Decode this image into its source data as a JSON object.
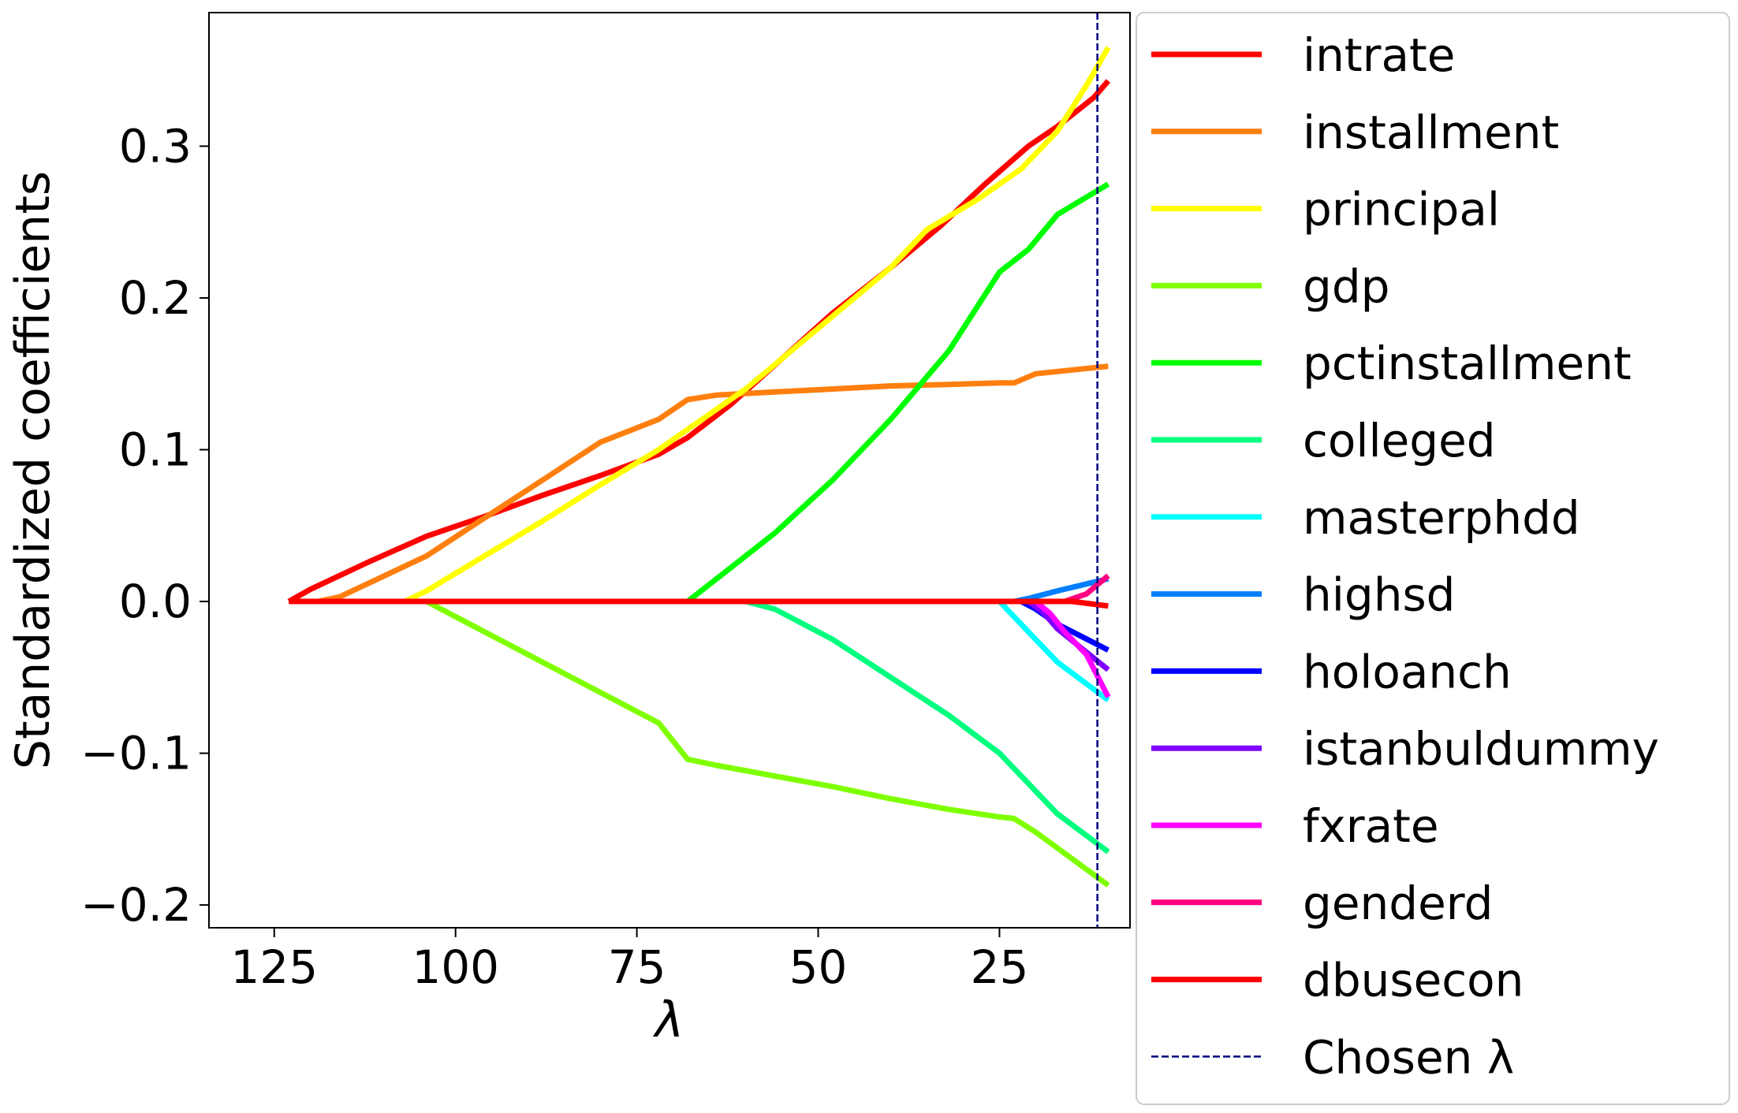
{
  "chart_data": {
    "type": "line",
    "title": "",
    "xlabel": "λ",
    "ylabel": "Standardized coefficients",
    "xlim": [
      134,
      7
    ],
    "ylim": [
      -0.215,
      0.388
    ],
    "x_ticks": [
      125,
      100,
      75,
      50,
      25
    ],
    "x_tick_labels": [
      "125",
      "100",
      "75",
      "50",
      "25"
    ],
    "y_ticks": [
      -0.2,
      -0.1,
      0.0,
      0.1,
      0.2,
      0.3
    ],
    "y_tick_labels": [
      "−0.2",
      "−0.1",
      "0.0",
      "0.1",
      "0.2",
      "0.3"
    ],
    "grid": false,
    "legend_position": "outside-right",
    "chosen_lambda": {
      "label": "Chosen λ",
      "x": 11.5,
      "color": "#000080"
    },
    "series": [
      {
        "name": "intrate",
        "color": "#ff0000",
        "points": [
          [
            123,
            0
          ],
          [
            120,
            0.008
          ],
          [
            112,
            0.026
          ],
          [
            104,
            0.043
          ],
          [
            96,
            0.056
          ],
          [
            88,
            0.07
          ],
          [
            80,
            0.083
          ],
          [
            72,
            0.097
          ],
          [
            68,
            0.108
          ],
          [
            62,
            0.13
          ],
          [
            55,
            0.16
          ],
          [
            48,
            0.19
          ],
          [
            40,
            0.22
          ],
          [
            33,
            0.248
          ],
          [
            27,
            0.275
          ],
          [
            21,
            0.3
          ],
          [
            17,
            0.313
          ],
          [
            12,
            0.332
          ],
          [
            10,
            0.343
          ]
        ]
      },
      {
        "name": "installment",
        "color": "#ff7f0e",
        "points": [
          [
            119,
            0
          ],
          [
            116,
            0.003
          ],
          [
            104,
            0.03
          ],
          [
            96,
            0.055
          ],
          [
            88,
            0.08
          ],
          [
            80,
            0.105
          ],
          [
            72,
            0.12
          ],
          [
            68,
            0.133
          ],
          [
            64,
            0.136
          ],
          [
            56,
            0.138
          ],
          [
            48,
            0.14
          ],
          [
            40,
            0.142
          ],
          [
            32,
            0.143
          ],
          [
            25,
            0.144
          ],
          [
            23,
            0.144
          ],
          [
            20,
            0.15
          ],
          [
            10,
            0.155
          ]
        ]
      },
      {
        "name": "principal",
        "color": "#ffff00",
        "points": [
          [
            107,
            0
          ],
          [
            104,
            0.007
          ],
          [
            96,
            0.03
          ],
          [
            88,
            0.053
          ],
          [
            80,
            0.077
          ],
          [
            72,
            0.1
          ],
          [
            66,
            0.12
          ],
          [
            60,
            0.14
          ],
          [
            55,
            0.16
          ],
          [
            50,
            0.18
          ],
          [
            45,
            0.2
          ],
          [
            40,
            0.22
          ],
          [
            35,
            0.245
          ],
          [
            28,
            0.265
          ],
          [
            22,
            0.285
          ],
          [
            17,
            0.31
          ],
          [
            13,
            0.34
          ],
          [
            10,
            0.365
          ]
        ]
      },
      {
        "name": "gdp",
        "color": "#7fff00",
        "points": [
          [
            104,
            0
          ],
          [
            96,
            -0.02
          ],
          [
            88,
            -0.04
          ],
          [
            80,
            -0.06
          ],
          [
            72,
            -0.08
          ],
          [
            68,
            -0.104
          ],
          [
            64,
            -0.108
          ],
          [
            56,
            -0.115
          ],
          [
            48,
            -0.122
          ],
          [
            40,
            -0.13
          ],
          [
            32,
            -0.137
          ],
          [
            25,
            -0.142
          ],
          [
            23,
            -0.143
          ],
          [
            20,
            -0.152
          ],
          [
            10,
            -0.187
          ]
        ]
      },
      {
        "name": "pctinstallment",
        "color": "#00ff00",
        "points": [
          [
            68,
            0
          ],
          [
            64,
            0.015
          ],
          [
            56,
            0.045
          ],
          [
            48,
            0.08
          ],
          [
            40,
            0.12
          ],
          [
            32,
            0.165
          ],
          [
            25,
            0.217
          ],
          [
            21,
            0.232
          ],
          [
            17,
            0.255
          ],
          [
            10,
            0.275
          ]
        ]
      },
      {
        "name": "colleged",
        "color": "#00ff7f",
        "points": [
          [
            60,
            0
          ],
          [
            56,
            -0.005
          ],
          [
            48,
            -0.025
          ],
          [
            40,
            -0.05
          ],
          [
            32,
            -0.075
          ],
          [
            25,
            -0.1
          ],
          [
            21,
            -0.12
          ],
          [
            17,
            -0.14
          ],
          [
            10,
            -0.165
          ]
        ]
      },
      {
        "name": "masterphdd",
        "color": "#00ffff",
        "points": [
          [
            25,
            0
          ],
          [
            21,
            -0.02
          ],
          [
            17,
            -0.04
          ],
          [
            10,
            -0.065
          ]
        ]
      },
      {
        "name": "highsd",
        "color": "#007fff",
        "points": [
          [
            23,
            0
          ],
          [
            21,
            0.002
          ],
          [
            17,
            0.007
          ],
          [
            10,
            0.015
          ]
        ]
      },
      {
        "name": "holoanch",
        "color": "#0000ff",
        "points": [
          [
            22,
            0
          ],
          [
            20,
            -0.005
          ],
          [
            17,
            -0.015
          ],
          [
            10,
            -0.032
          ]
        ]
      },
      {
        "name": "istanbuldummy",
        "color": "#7f00ff",
        "points": [
          [
            21,
            0
          ],
          [
            19,
            -0.007
          ],
          [
            17,
            -0.018
          ],
          [
            10,
            -0.045
          ]
        ]
      },
      {
        "name": "fxrate",
        "color": "#ff00ff",
        "points": [
          [
            20,
            0
          ],
          [
            18,
            -0.008
          ],
          [
            16,
            -0.02
          ],
          [
            13,
            -0.035
          ],
          [
            10,
            -0.063
          ]
        ]
      },
      {
        "name": "genderd",
        "color": "#ff007f",
        "points": [
          [
            19,
            0
          ],
          [
            16,
            0
          ],
          [
            13,
            0.005
          ],
          [
            10,
            0.017
          ]
        ]
      },
      {
        "name": "dbusecon",
        "color": "#ff0000",
        "points": [
          [
            123,
            0
          ],
          [
            100,
            0
          ],
          [
            75,
            0
          ],
          [
            50,
            0
          ],
          [
            25,
            0
          ],
          [
            15,
            0
          ],
          [
            10,
            -0.003
          ]
        ]
      }
    ]
  }
}
